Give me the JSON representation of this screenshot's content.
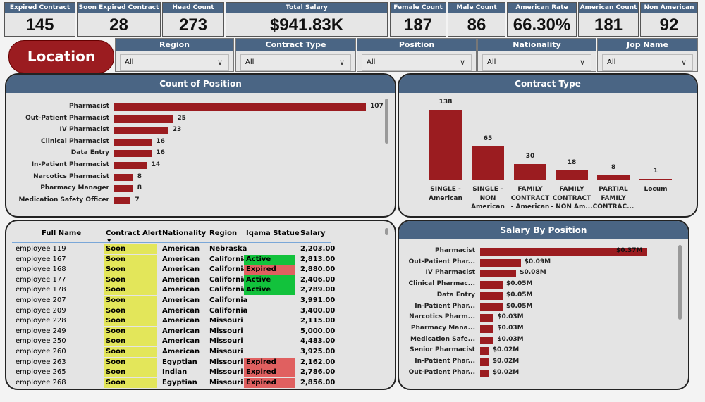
{
  "kpis": [
    {
      "label": "Expired Contract",
      "value": "145"
    },
    {
      "label": "Soon Expired Contract",
      "value": "28"
    },
    {
      "label": "Head Count",
      "value": "273"
    },
    {
      "label": "Total Salary",
      "value": "$941.83K"
    },
    {
      "label": "Female Count",
      "value": "187"
    },
    {
      "label": "Male Count",
      "value": "86"
    },
    {
      "label": "American Rate",
      "value": "66.30%"
    },
    {
      "label": "American Count",
      "value": "181"
    },
    {
      "label": "Non American",
      "value": "92"
    }
  ],
  "location_button": "Location",
  "filters": [
    {
      "label": "Region",
      "value": "All"
    },
    {
      "label": "Contract Type",
      "value": "All"
    },
    {
      "label": "Position",
      "value": "All"
    },
    {
      "label": "Nationality",
      "value": "All"
    },
    {
      "label": "Jop Name",
      "value": "All"
    }
  ],
  "colors": {
    "header": "#4a6584",
    "bar": "#9b1c20",
    "soon": "#e3e65a",
    "active": "#12c23c",
    "expired": "#e06060"
  },
  "chart_data": [
    {
      "type": "bar",
      "orientation": "horizontal",
      "title": "Count of Position",
      "categories": [
        "Pharmacist",
        "Out-Patient Pharmacist",
        "IV Pharmacist",
        "Clinical Pharmacist",
        "Data Entry",
        "In-Patient Pharmacist",
        "Narcotics Pharmacist",
        "Pharmacy Manager",
        "Medication Safety Officer"
      ],
      "values": [
        107,
        25,
        23,
        16,
        16,
        14,
        8,
        8,
        7
      ]
    },
    {
      "type": "bar",
      "orientation": "vertical",
      "title": "Contract Type",
      "categories": [
        "SINGLE - American",
        "SINGLE - NON American",
        "FAMILY CONTRACT - American",
        "FAMILY CONTRACT - NON Am...",
        "PARTIAL FAMILY CONTRAC...",
        "Locum"
      ],
      "values": [
        138,
        65,
        30,
        18,
        8,
        1
      ]
    },
    {
      "type": "bar",
      "orientation": "horizontal",
      "title": "Salary By Position",
      "categories": [
        "Pharmacist",
        "Out-Patient Phar...",
        "IV Pharmacist",
        "Clinical Pharmac...",
        "Data Entry",
        "In-Patient Phar...",
        "Narcotics Pharm...",
        "Pharmacy Mana...",
        "Medication Safe...",
        "Senior Pharmacist",
        "In-Patient Phar...",
        "Out-Patient Phar..."
      ],
      "values": [
        0.37,
        0.09,
        0.08,
        0.05,
        0.05,
        0.05,
        0.03,
        0.03,
        0.03,
        0.02,
        0.02,
        0.02
      ],
      "labels": [
        "$0.37M",
        "$0.09M",
        "$0.08M",
        "$0.05M",
        "$0.05M",
        "$0.05M",
        "$0.03M",
        "$0.03M",
        "$0.03M",
        "$0.02M",
        "$0.02M",
        "$0.02M"
      ]
    }
  ],
  "table": {
    "columns": [
      "Full Name",
      "Contract Alert",
      "Nationality",
      "Region",
      "Iqama Statue",
      "Salary"
    ],
    "rows": [
      [
        "employee 119",
        "Soon",
        "American",
        "Nebraska",
        "",
        "2,203.00"
      ],
      [
        "employee 167",
        "Soon",
        "American",
        "California",
        "Active",
        "2,813.00"
      ],
      [
        "employee 168",
        "Soon",
        "American",
        "California",
        "Expired",
        "2,880.00"
      ],
      [
        "employee 177",
        "Soon",
        "American",
        "California",
        "Active",
        "2,406.00"
      ],
      [
        "employee 178",
        "Soon",
        "American",
        "California",
        "Active",
        "2,789.00"
      ],
      [
        "employee 207",
        "Soon",
        "American",
        "California",
        "",
        "3,991.00"
      ],
      [
        "employee 209",
        "Soon",
        "American",
        "California",
        "",
        "3,400.00"
      ],
      [
        "employee 228",
        "Soon",
        "American",
        "Missouri",
        "",
        "2,115.00"
      ],
      [
        "employee 249",
        "Soon",
        "American",
        "Missouri",
        "",
        "5,000.00"
      ],
      [
        "employee 250",
        "Soon",
        "American",
        "Missouri",
        "",
        "4,483.00"
      ],
      [
        "employee 260",
        "Soon",
        "American",
        "Missouri",
        "",
        "3,925.00"
      ],
      [
        "employee 263",
        "Soon",
        "Egyptian",
        "Missouri",
        "Expired",
        "2,162.00"
      ],
      [
        "employee 265",
        "Soon",
        "Indian",
        "Missouri",
        "Expired",
        "2,786.00"
      ],
      [
        "employee 268",
        "Soon",
        "Egyptian",
        "Missouri",
        "Expired",
        "2,856.00"
      ]
    ]
  }
}
